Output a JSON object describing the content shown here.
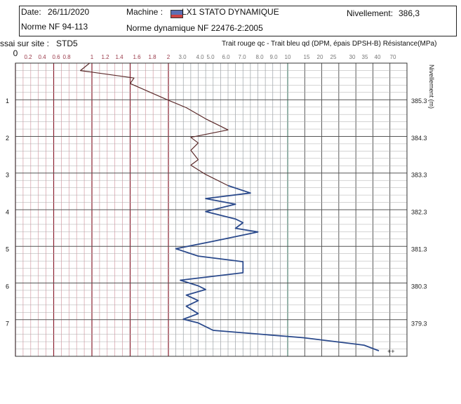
{
  "header": {
    "date_label": "Date:",
    "date_value": "26/11/2020",
    "machine_label": "Machine :",
    "machine_value": "LX1 STATO DYNAMIQUE",
    "nivellement_label": "Nivellement:",
    "nivellement_value": "386,3",
    "norme_label": "Norme NF 94-113",
    "norme_dyn": "Norme dynamique NF 22476-2:2005",
    "essai_label": "ssai sur site :",
    "essai_value": "STD5",
    "legend_text": "Trait rouge qc - Trait bleu qd (DPM, épais DPSH-B) Résistance(MPa)"
  },
  "chart_data": {
    "type": "line",
    "top_ticks": [
      "0",
      "0.2",
      "0.4",
      "0.6",
      "0.8",
      "1",
      "1.2",
      "1.4",
      "1.6",
      "1.8",
      "2",
      "3.0",
      "4.0",
      "5.0",
      "6.0",
      "7.0",
      "8.0",
      "9.0",
      "10",
      "15",
      "20",
      "25",
      "30",
      "35",
      "40",
      "70"
    ],
    "depth_ticks": [
      "1",
      "2",
      "3",
      "4",
      "5",
      "6",
      "7"
    ],
    "nivellement_ticks": [
      "385.3",
      "384.3",
      "383.3",
      "382.3",
      "381.3",
      "380.3",
      "379.3"
    ],
    "right_axis_label": "Nivellement (m)",
    "end_mark": "++",
    "series": [
      {
        "color": "#5a2a2a",
        "points": [
          [
            0.97,
            0.0
          ],
          [
            0.85,
            0.2
          ],
          [
            1.55,
            0.4
          ],
          [
            1.5,
            0.55
          ],
          [
            2.0,
            1.0
          ],
          [
            3.2,
            1.2
          ],
          [
            4.5,
            1.5
          ],
          [
            6.0,
            1.8
          ],
          [
            3.5,
            2.0
          ],
          [
            4.0,
            2.15
          ],
          [
            3.5,
            2.35
          ],
          [
            4.0,
            2.6
          ],
          [
            3.5,
            2.75
          ],
          [
            4.5,
            3.0
          ],
          [
            6.0,
            3.3
          ]
        ]
      },
      {
        "color": "#2b4a8c",
        "points": [
          [
            6.0,
            3.3
          ],
          [
            7.5,
            3.5
          ],
          [
            4.5,
            3.65
          ],
          [
            6.5,
            3.8
          ],
          [
            4.5,
            4.0
          ],
          [
            6.5,
            4.2
          ],
          [
            7.0,
            4.3
          ],
          [
            6.5,
            4.45
          ],
          [
            8.0,
            4.55
          ],
          [
            5.0,
            4.8
          ],
          [
            2.5,
            5.0
          ],
          [
            4.0,
            5.2
          ],
          [
            7.0,
            5.35
          ],
          [
            7.0,
            5.65
          ],
          [
            2.8,
            5.85
          ],
          [
            4.0,
            6.0
          ],
          [
            4.5,
            6.1
          ],
          [
            3.2,
            6.25
          ],
          [
            4.0,
            6.4
          ],
          [
            3.2,
            6.55
          ],
          [
            4.0,
            6.75
          ],
          [
            3.0,
            6.9
          ],
          [
            4.0,
            7.0
          ],
          [
            5.0,
            7.2
          ],
          [
            15,
            7.4
          ],
          [
            35,
            7.6
          ],
          [
            40,
            7.75
          ]
        ]
      }
    ]
  }
}
